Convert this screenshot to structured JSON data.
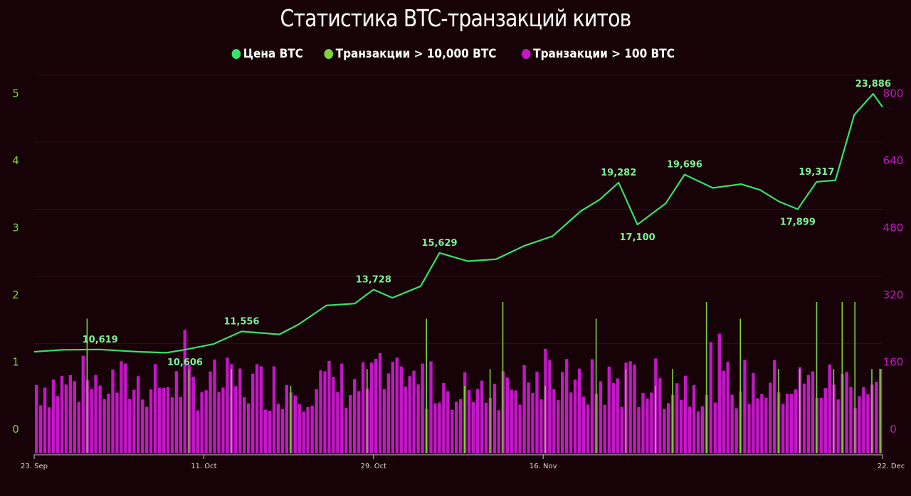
{
  "chart_data": {
    "type": "line",
    "title": "Статистика BTC-транзакций китов",
    "series": [
      {
        "name": "Цена BTC",
        "color": "#33e36b",
        "axis": "right_price",
        "x": [
          "2020-09-23",
          "2020-09-26",
          "2020-09-30",
          "2020-10-04",
          "2020-10-07",
          "2020-10-09",
          "2020-10-12",
          "2020-10-15",
          "2020-10-19",
          "2020-10-21",
          "2020-10-24",
          "2020-10-27",
          "2020-10-29",
          "2020-10-31",
          "2020-11-03",
          "2020-11-05",
          "2020-11-08",
          "2020-11-11",
          "2020-11-14",
          "2020-11-17",
          "2020-11-20",
          "2020-11-22",
          "2020-11-24",
          "2020-11-26",
          "2020-11-29",
          "2020-12-01",
          "2020-12-04",
          "2020-12-07",
          "2020-12-09",
          "2020-12-11",
          "2020-12-13",
          "2020-12-15",
          "2020-12-17",
          "2020-12-19",
          "2020-12-21",
          "2020-12-22"
        ],
        "values": [
          10500,
          10600,
          10619,
          10500,
          10450,
          10606,
          10900,
          11556,
          11400,
          11900,
          12900,
          13000,
          13728,
          13300,
          13900,
          15629,
          15200,
          15300,
          16000,
          16500,
          17800,
          18400,
          19282,
          17100,
          18200,
          19696,
          19000,
          19200,
          18900,
          18300,
          17899,
          19317,
          19400,
          22800,
          23886,
          23200
        ]
      },
      {
        "name": "Транзакции > 10,000 BTC",
        "color": "#7dd33a",
        "axis": "left"
      },
      {
        "name": "Транзакции > 100 BTC",
        "color": "#c218c6",
        "axis": "right"
      }
    ],
    "price_labels": [
      {
        "x": "2020-09-30",
        "text": "10,619"
      },
      {
        "x": "2020-10-09",
        "text": "10,606"
      },
      {
        "x": "2020-10-15",
        "text": "11,556"
      },
      {
        "x": "2020-10-29",
        "text": "13,728"
      },
      {
        "x": "2020-11-05",
        "text": "15,629"
      },
      {
        "x": "2020-11-24",
        "text": "19,282"
      },
      {
        "x": "2020-11-26",
        "text": "17,100"
      },
      {
        "x": "2020-12-01",
        "text": "19,696"
      },
      {
        "x": "2020-12-13",
        "text": "17,899"
      },
      {
        "x": "2020-12-15",
        "text": "19,317"
      },
      {
        "x": "2020-12-21",
        "text": "23,886"
      }
    ],
    "x_ticks": [
      "23. Sep",
      "11. Oct",
      "29. Oct",
      "16. Nov",
      "22. Dec"
    ],
    "y_left_ticks": [
      "0",
      "1",
      "2",
      "3",
      "4",
      "5"
    ],
    "y_right_ticks": [
      "0",
      "160",
      "320",
      "480",
      "640",
      "800"
    ],
    "ylim_left": [
      -0.4,
      5.25
    ],
    "ylim_right": [
      -64,
      840
    ],
    "colors": {
      "background": "#170208",
      "left_axis": "#7dd33a",
      "right_axis": "#c218c6",
      "price": "#33e36b",
      "gridlines": "#2a0f18"
    }
  }
}
